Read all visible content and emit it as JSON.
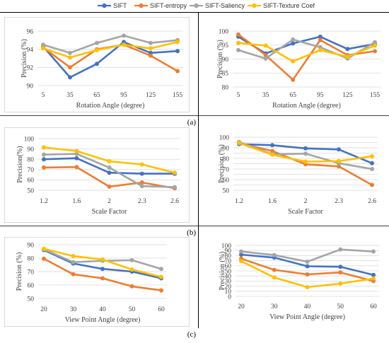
{
  "legend": [
    {
      "name": "SIFT",
      "color": "#4472C4"
    },
    {
      "name": "SIFT-entropy",
      "color": "#ED7D31"
    },
    {
      "name": "SIFT-Saliency",
      "color": "#A5A5A5"
    },
    {
      "name": "SIFT-Texture Coef",
      "color": "#FFC000"
    }
  ],
  "rows": [
    {
      "label": "(a)"
    },
    {
      "label": "(b)"
    },
    {
      "label": "(c)"
    }
  ],
  "chart_data": [
    {
      "type": "line",
      "title": "",
      "xlabel": "Rotation Angle (degree)",
      "ylabel": "Precision (%)",
      "categories": [
        "5",
        "35",
        "65",
        "95",
        "125",
        "155"
      ],
      "ylim": [
        90,
        96
      ],
      "yticks": [
        90,
        92,
        94,
        96
      ],
      "grid": true,
      "series": [
        {
          "name": "SIFT",
          "values": [
            94.3,
            90.9,
            92.4,
            94.8,
            93.6,
            93.8
          ]
        },
        {
          "name": "SIFT-entropy",
          "values": [
            94.2,
            92.0,
            94.0,
            94.5,
            93.3,
            91.6
          ]
        },
        {
          "name": "SIFT-Saliency",
          "values": [
            94.5,
            93.6,
            94.7,
            95.5,
            94.7,
            95.0
          ]
        },
        {
          "name": "SIFT-Texture Coef",
          "values": [
            94.1,
            93.1,
            93.9,
            94.5,
            94.1,
            94.8
          ]
        }
      ]
    },
    {
      "type": "line",
      "title": "",
      "xlabel": "Rotation Angle (degree)",
      "ylabel": "Precision (%)",
      "categories": [
        "5",
        "35",
        "65",
        "95",
        "125",
        "155"
      ],
      "ylim": [
        80,
        100
      ],
      "yticks": [
        80,
        85,
        90,
        95,
        100
      ],
      "grid": true,
      "series": [
        {
          "name": "SIFT",
          "values": [
            98.0,
            92.0,
            95.6,
            98.0,
            93.6,
            95.4
          ]
        },
        {
          "name": "SIFT-entropy",
          "values": [
            98.8,
            91.4,
            82.6,
            96.8,
            91.4,
            92.8
          ]
        },
        {
          "name": "SIFT-Saliency",
          "values": [
            93.2,
            90.2,
            97.0,
            94.2,
            90.2,
            96.0
          ]
        },
        {
          "name": "SIFT-Texture Coef",
          "values": [
            95.8,
            94.8,
            89.2,
            93.2,
            90.8,
            94.8
          ]
        }
      ]
    },
    {
      "type": "line",
      "title": "",
      "xlabel": "Scale Factor",
      "ylabel": "Precision(%)",
      "categories": [
        "1.2",
        "1.6",
        "2",
        "2.3",
        "2.6"
      ],
      "ylim": [
        50,
        100
      ],
      "yticks": [
        50,
        60,
        70,
        80,
        90,
        100
      ],
      "grid": true,
      "series": [
        {
          "name": "SIFT",
          "values": [
            80,
            81,
            67,
            66,
            66
          ]
        },
        {
          "name": "SIFT-entropy",
          "values": [
            72,
            72.5,
            53.5,
            57.5,
            52
          ]
        },
        {
          "name": "SIFT-Saliency",
          "values": [
            84.5,
            85.2,
            72,
            54,
            53
          ]
        },
        {
          "name": "SIFT-Texture Coef",
          "values": [
            91.5,
            88,
            78,
            75,
            67
          ]
        }
      ]
    },
    {
      "type": "line",
      "title": "",
      "xlabel": "Scale Factor",
      "ylabel": "Precision (%)",
      "categories": [
        "1.2",
        "1.6",
        "2",
        "2.3",
        "2.6"
      ],
      "ylim": [
        50,
        100
      ],
      "yticks": [
        50,
        55,
        60,
        65,
        70,
        75,
        80,
        85,
        90,
        95,
        100
      ],
      "grid": true,
      "series": [
        {
          "name": "SIFT",
          "values": [
            93.5,
            92.5,
            89.5,
            88.5,
            75.5
          ]
        },
        {
          "name": "SIFT-entropy",
          "values": [
            94.5,
            87,
            74.5,
            72.5,
            55
          ]
        },
        {
          "name": "SIFT-Saliency",
          "values": [
            95.5,
            84,
            84.5,
            75.5,
            70
          ]
        },
        {
          "name": "SIFT-Texture Coef",
          "values": [
            94.5,
            83.5,
            77,
            77.5,
            82
          ]
        }
      ]
    },
    {
      "type": "line",
      "title": "",
      "xlabel": "View Point Angle (degree)",
      "ylabel": "Precision (%)",
      "categories": [
        "20",
        "30",
        "40",
        "50",
        "60"
      ],
      "ylim": [
        50,
        90
      ],
      "yticks": [
        50,
        60,
        70,
        80,
        90
      ],
      "grid": true,
      "series": [
        {
          "name": "SIFT",
          "values": [
            86,
            76,
            72,
            70,
            65
          ]
        },
        {
          "name": "SIFT-entropy",
          "values": [
            79.5,
            68,
            65,
            59,
            56
          ]
        },
        {
          "name": "SIFT-Saliency",
          "values": [
            86.5,
            77,
            78,
            78.5,
            72
          ]
        },
        {
          "name": "SIFT-Texture Coef",
          "values": [
            87,
            81.5,
            79,
            71.5,
            66
          ]
        }
      ]
    },
    {
      "type": "line",
      "title": "",
      "xlabel": "View Point Angle (degree)",
      "ylabel": "Precision (%)",
      "categories": [
        "20",
        "30",
        "40",
        "50",
        "60"
      ],
      "ylim": [
        0,
        100
      ],
      "yticks": [
        0,
        10,
        20,
        30,
        40,
        50,
        60,
        70,
        80,
        90,
        100
      ],
      "grid": true,
      "series": [
        {
          "name": "SIFT",
          "values": [
            82,
            76,
            59,
            58,
            42
          ]
        },
        {
          "name": "SIFT-entropy",
          "values": [
            74,
            52,
            43,
            47,
            30
          ]
        },
        {
          "name": "SIFT-Saliency",
          "values": [
            88,
            81,
            68,
            92,
            88
          ]
        },
        {
          "name": "SIFT-Texture Coef",
          "values": [
            69,
            37,
            18,
            25,
            35
          ]
        }
      ]
    }
  ]
}
